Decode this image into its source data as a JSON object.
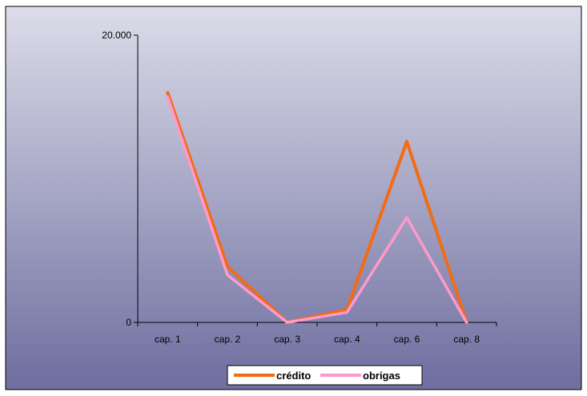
{
  "chart_data": {
    "type": "line",
    "categories": [
      "cap. 1",
      "cap. 2",
      "cap. 3",
      "cap. 4",
      "cap. 6",
      "cap. 8"
    ],
    "series": [
      {
        "name": "crédito",
        "values": [
          16000,
          3900,
          0,
          900,
          12600,
          0
        ],
        "color": "#f26b15"
      },
      {
        "name": "obrigas",
        "values": [
          15700,
          3300,
          0,
          700,
          7300,
          0
        ],
        "color": "#ff99cc"
      }
    ],
    "ylim": [
      0,
      20000
    ],
    "yticks": [
      {
        "value": 0,
        "label": "0"
      },
      {
        "value": 20000,
        "label": "20.000"
      }
    ],
    "title": "",
    "xlabel": "",
    "ylabel": "",
    "grid": false,
    "legend_position": "bottom-center",
    "background": {
      "top_color": "#dcdce9",
      "bottom_color": "#6e6ea0"
    }
  }
}
